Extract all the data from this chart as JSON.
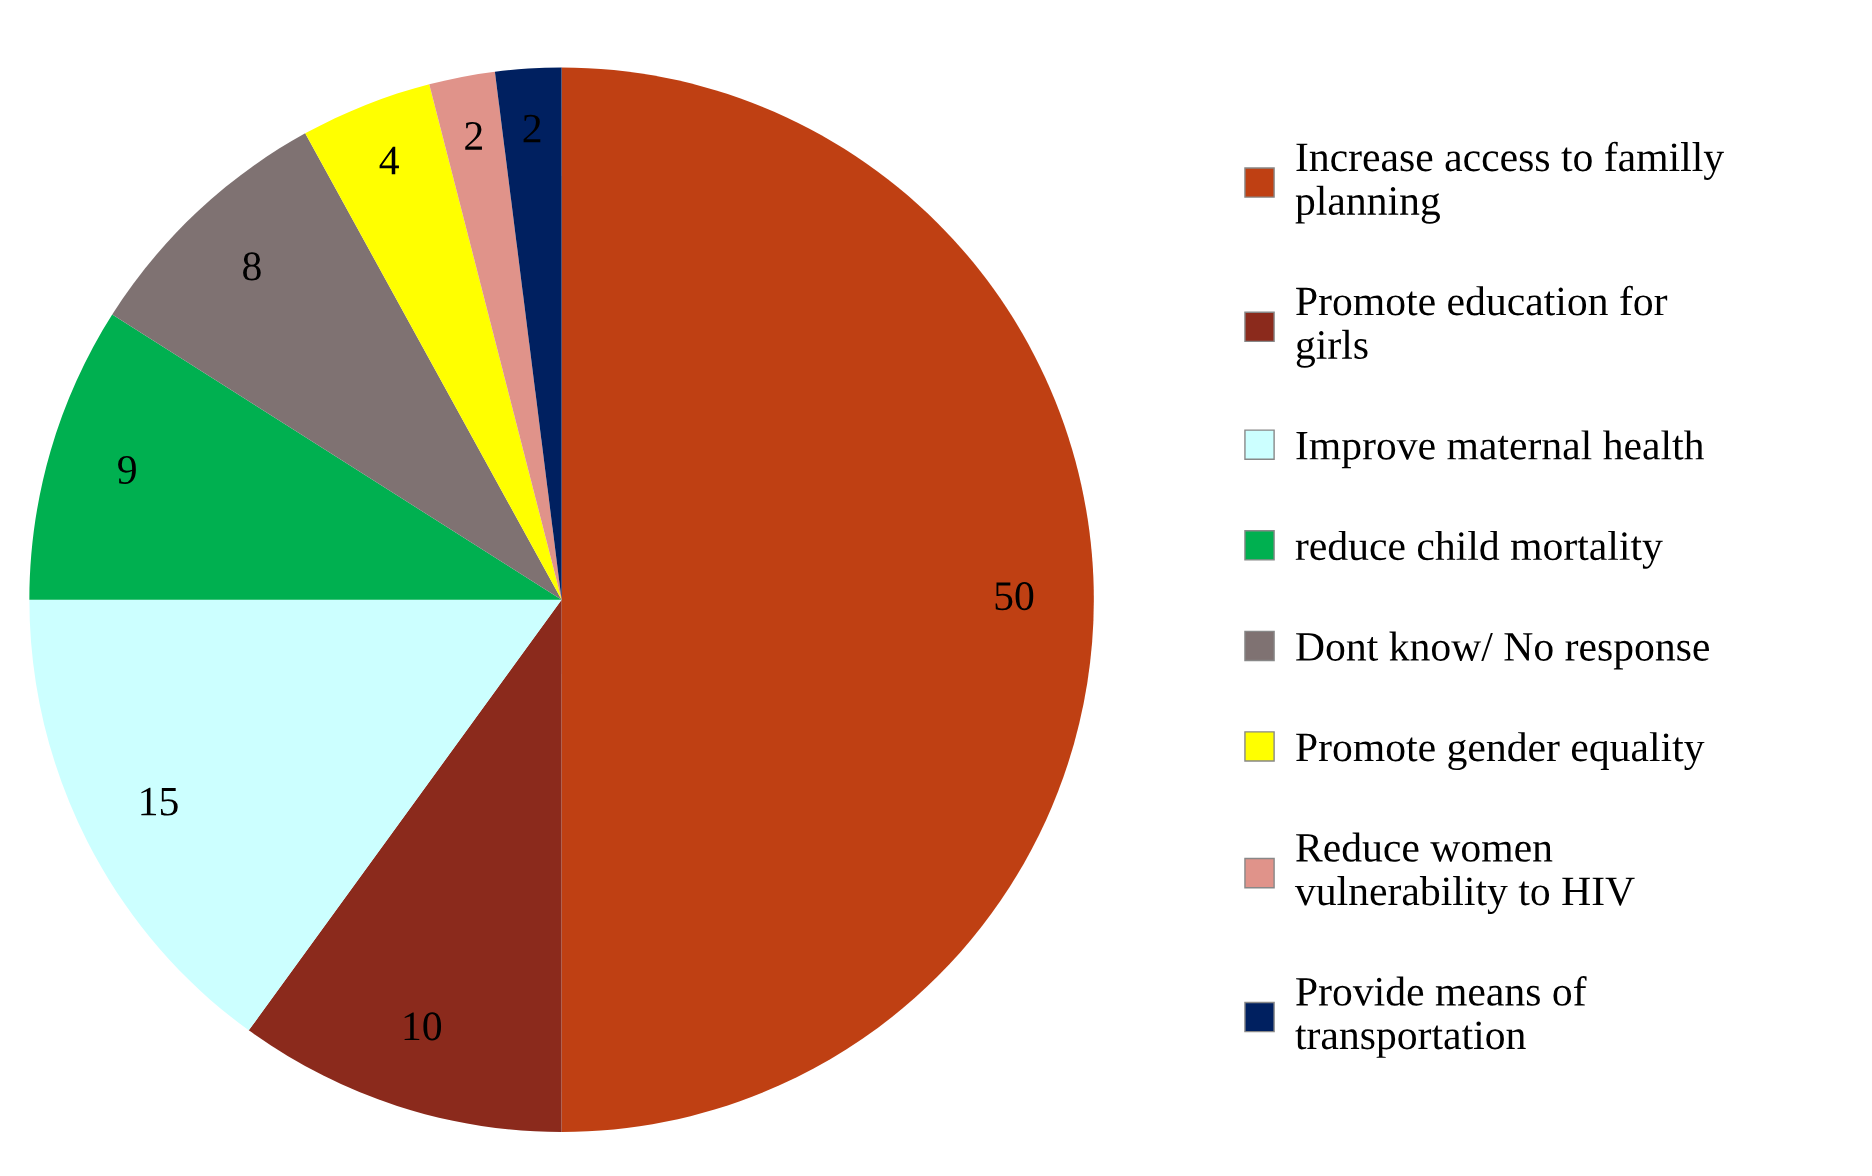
{
  "chart_data": {
    "type": "pie",
    "categories": [
      "Increase access to familly planning",
      "Promote education for girls",
      "Improve maternal health",
      "reduce child mortality",
      "Dont know/ No response",
      "Promote gender equality",
      "Reduce women vulnerability to HIV",
      "Provide means of transportation"
    ],
    "values": [
      50,
      10,
      15,
      9,
      8,
      4,
      2,
      2
    ],
    "colors": [
      "#bf4013",
      "#8b2a1c",
      "#ccffff",
      "#00b050",
      "#7f7272",
      "#ffff00",
      "#e0938a",
      "#002060"
    ],
    "data_labels": true,
    "legend": "right"
  }
}
